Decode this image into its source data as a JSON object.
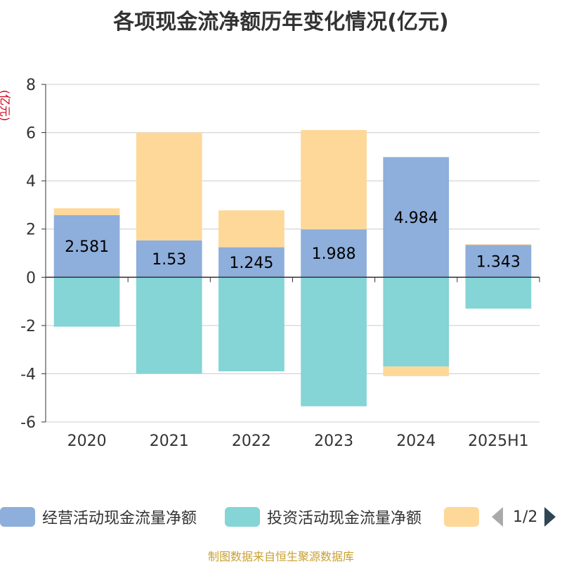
{
  "title": "各项现金流净额历年变化情况(亿元)",
  "unit": "(亿元)",
  "source": "制图数据来自恒生聚源数据库",
  "legend": {
    "pager": "1/2"
  },
  "colors": {
    "operating": "#8eaedb",
    "investing": "#85d4d6",
    "financing": "#fdd899",
    "axis": "#333333",
    "grid": "#cccccc"
  },
  "chart_data": {
    "type": "bar",
    "stacked": true,
    "categories": [
      "2020",
      "2021",
      "2022",
      "2023",
      "2024",
      "2025H1"
    ],
    "series": [
      {
        "name": "经营活动现金流量净额",
        "key": "operating",
        "values": [
          2.581,
          1.53,
          1.245,
          1.988,
          4.984,
          1.343
        ],
        "labels": [
          "2.581",
          "1.53",
          "1.245",
          "1.988",
          "4.984",
          "1.343"
        ]
      },
      {
        "name": "投资活动现金流量净额",
        "key": "investing",
        "values": [
          -2.05,
          -4.0,
          -3.9,
          -5.35,
          -3.7,
          -1.3
        ]
      },
      {
        "name": "",
        "key": "financing",
        "values": [
          0.28,
          4.47,
          1.53,
          4.12,
          -0.4,
          0.03
        ]
      }
    ],
    "yticks": [
      "8",
      "6",
      "4",
      "2",
      "0",
      "-2",
      "-4",
      "-6"
    ],
    "ylim": [
      -6,
      8
    ],
    "grid": true
  }
}
